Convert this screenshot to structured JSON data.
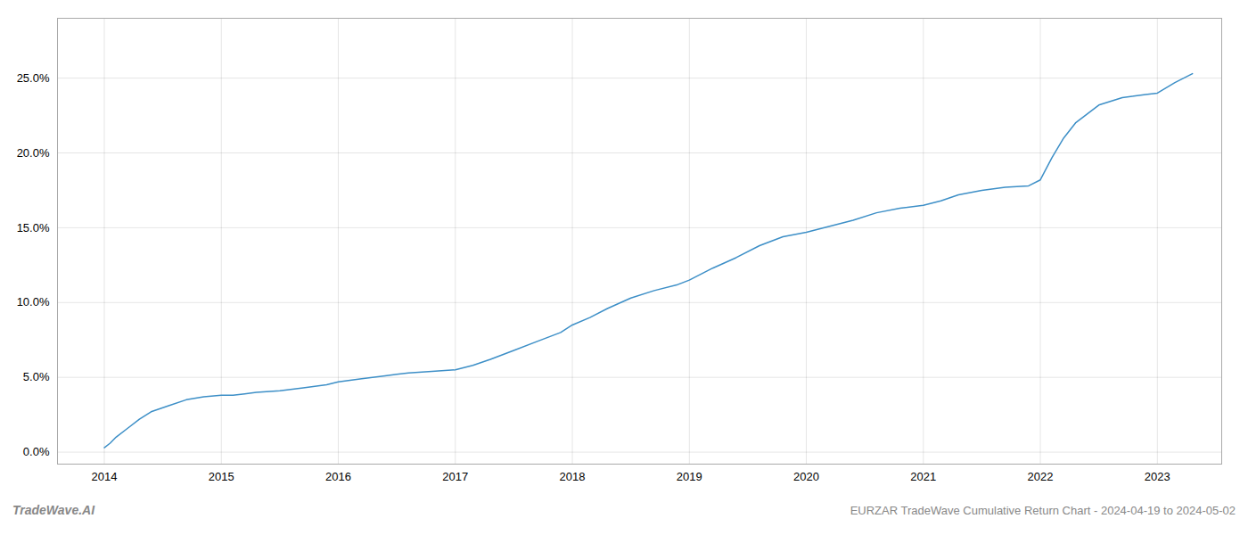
{
  "chart_data": {
    "type": "line",
    "title": "EURZAR TradeWave Cumulative Return Chart - 2024-04-19 to 2024-05-02",
    "annotations": [
      "TradeWave.AI"
    ],
    "color": "#3d8fc7",
    "grid": true,
    "xlim": [
      2013.6,
      2023.55
    ],
    "xticks": [
      2014,
      2015,
      2016,
      2017,
      2018,
      2019,
      2020,
      2021,
      2022,
      2023
    ],
    "ylim": [
      -0.008,
      0.29
    ],
    "yticks": [
      {
        "value": 0.0,
        "label": "0.0%"
      },
      {
        "value": 0.05,
        "label": "5.0%"
      },
      {
        "value": 0.1,
        "label": "10.0%"
      },
      {
        "value": 0.15,
        "label": "15.0%"
      },
      {
        "value": 0.2,
        "label": "20.0%"
      },
      {
        "value": 0.25,
        "label": "25.0%"
      }
    ],
    "x": [
      2014.0,
      2014.05,
      2014.1,
      2014.2,
      2014.3,
      2014.4,
      2014.55,
      2014.7,
      2014.85,
      2015.0,
      2015.1,
      2015.2,
      2015.3,
      2015.5,
      2015.7,
      2015.9,
      2016.0,
      2016.2,
      2016.4,
      2016.5,
      2016.6,
      2016.8,
      2017.0,
      2017.15,
      2017.3,
      2017.5,
      2017.7,
      2017.9,
      2018.0,
      2018.15,
      2018.3,
      2018.5,
      2018.7,
      2018.9,
      2019.0,
      2019.1,
      2019.2,
      2019.4,
      2019.6,
      2019.8,
      2020.0,
      2020.2,
      2020.4,
      2020.6,
      2020.8,
      2021.0,
      2021.15,
      2021.3,
      2021.5,
      2021.7,
      2021.9,
      2022.0,
      2022.1,
      2022.2,
      2022.3,
      2022.5,
      2022.7,
      2022.9,
      2023.0,
      2023.15,
      2023.3
    ],
    "values": [
      0.003,
      0.006,
      0.01,
      0.016,
      0.022,
      0.027,
      0.031,
      0.035,
      0.037,
      0.038,
      0.038,
      0.039,
      0.04,
      0.041,
      0.043,
      0.045,
      0.047,
      0.049,
      0.051,
      0.052,
      0.053,
      0.054,
      0.055,
      0.058,
      0.062,
      0.068,
      0.074,
      0.08,
      0.085,
      0.09,
      0.096,
      0.103,
      0.108,
      0.112,
      0.115,
      0.119,
      0.123,
      0.13,
      0.138,
      0.144,
      0.147,
      0.151,
      0.155,
      0.16,
      0.163,
      0.165,
      0.168,
      0.172,
      0.175,
      0.177,
      0.178,
      0.182,
      0.197,
      0.21,
      0.22,
      0.232,
      0.237,
      0.239,
      0.24,
      0.247,
      0.253
    ]
  }
}
